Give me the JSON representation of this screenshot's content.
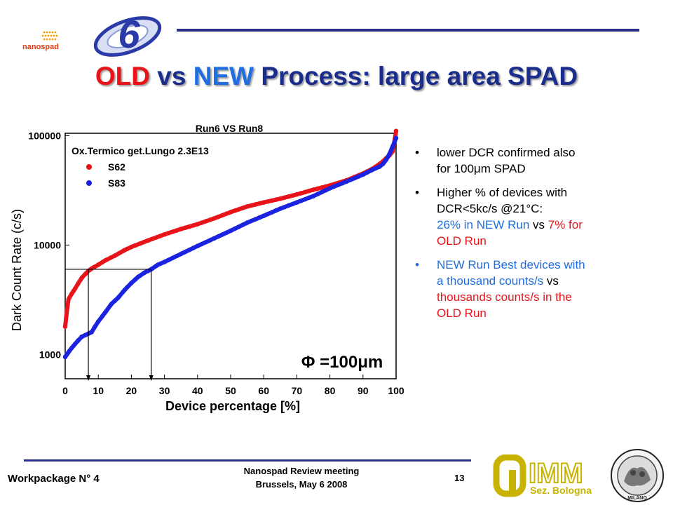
{
  "header": {
    "logo_text": "nanospad",
    "title": {
      "old": "OLD",
      "vs": "vs",
      "new": "NEW",
      "rest": "Process: large area SPAD"
    }
  },
  "bullets": [
    {
      "line1": "lower DCR confirmed also",
      "line2": "for 100μm SPAD"
    },
    {
      "line1": "Higher % of devices with",
      "line2": "DCR<5kc/s @21°C:",
      "line3_blue": "26% in NEW Run",
      "line3_vs": " vs ",
      "line3_red": "7% for",
      "line4_red": "OLD Run"
    },
    {
      "line1": "NEW Run Best devices with",
      "line2a": "a thousand counts/s",
      "line2b": " vs",
      "line3": "thousands counts/s in the",
      "line4": "OLD Run"
    }
  ],
  "footer": {
    "workpackage": "Workpackage N° 4",
    "meeting": "Nanospad Review meeting",
    "location_date": "Brussels, May 6 2008",
    "page_number": "13",
    "imm_logo": {
      "big": "IMM",
      "small": "Sez. Bologna"
    },
    "seal_text": "MILANO"
  },
  "chart_data": {
    "type": "scatter",
    "title": "Run6 VS Run8",
    "xlabel": "Device percentage [%]",
    "ylabel": "Dark Count Rate (c/s)",
    "annotation": "Ox.Termico get.Lungo 2.3E13",
    "diameter_label": "Φ =100μm",
    "x_ticks": [
      0,
      10,
      20,
      30,
      40,
      50,
      60,
      70,
      80,
      90,
      100
    ],
    "y_ticks": [
      1000,
      10000,
      100000
    ],
    "y_tick_labels": [
      "1000",
      "10000",
      "100000"
    ],
    "xlim": [
      0,
      100
    ],
    "ylim": [
      600,
      105000
    ],
    "yscale": "log",
    "legend_position": "top-left",
    "threshold_y": 6000,
    "threshold_x": [
      7,
      26
    ],
    "series": [
      {
        "name": "S62",
        "color": "#e8141a",
        "x": [
          0,
          0.5,
          1,
          2,
          3,
          4,
          5,
          6,
          7,
          8,
          10,
          12,
          15,
          18,
          20,
          25,
          30,
          35,
          40,
          45,
          50,
          55,
          60,
          65,
          70,
          75,
          80,
          85,
          90,
          93,
          95,
          96,
          97,
          98,
          99,
          100
        ],
        "y": [
          1800,
          2500,
          3200,
          3600,
          4000,
          4500,
          5000,
          5400,
          5800,
          6100,
          6600,
          7200,
          8000,
          9000,
          9600,
          11000,
          12500,
          14000,
          15500,
          17500,
          20000,
          22500,
          24500,
          26500,
          29000,
          32000,
          35000,
          39000,
          45000,
          50000,
          55000,
          58000,
          62000,
          66000,
          72000,
          110000
        ]
      },
      {
        "name": "S83",
        "color": "#1a23e0",
        "x": [
          0,
          0.5,
          1,
          2,
          3,
          4,
          5,
          6,
          7,
          8,
          9,
          10,
          12,
          14,
          16,
          18,
          20,
          22,
          24,
          26,
          28,
          30,
          35,
          40,
          45,
          50,
          55,
          60,
          65,
          70,
          75,
          80,
          85,
          90,
          93,
          95,
          96,
          97,
          98,
          99,
          100
        ],
        "y": [
          950,
          1000,
          1050,
          1150,
          1250,
          1350,
          1450,
          1500,
          1550,
          1600,
          1800,
          2000,
          2400,
          2900,
          3300,
          3900,
          4500,
          5100,
          5600,
          6000,
          6600,
          7000,
          8300,
          9800,
          11500,
          13500,
          16000,
          18500,
          21500,
          24500,
          28000,
          33000,
          38000,
          44000,
          49000,
          52000,
          55000,
          60000,
          68000,
          80000,
          95000
        ]
      }
    ]
  }
}
